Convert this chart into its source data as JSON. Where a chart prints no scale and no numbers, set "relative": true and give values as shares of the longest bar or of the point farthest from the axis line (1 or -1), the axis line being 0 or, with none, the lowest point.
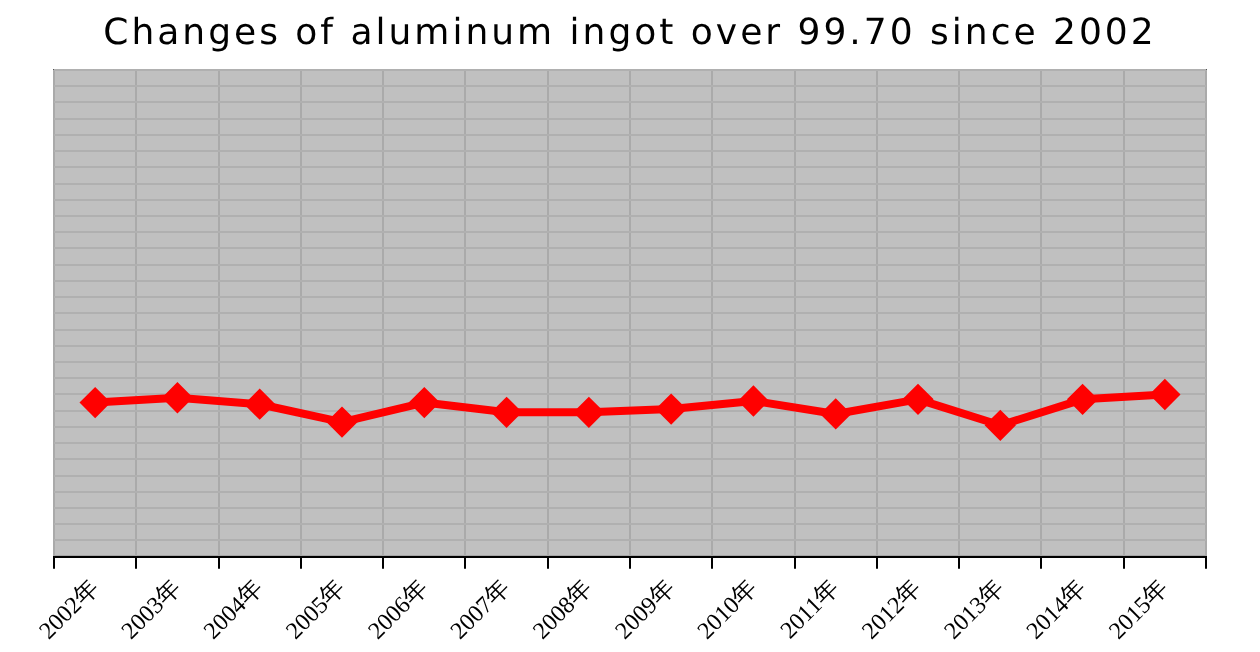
{
  "chart_data": {
    "type": "line",
    "title": "Changes of aluminum ingot over 99.70 since 2002",
    "categories": [
      "2002年",
      "2003年",
      "2004年",
      "2005年",
      "2006年",
      "2007年",
      "2008年",
      "2009年",
      "2010年",
      "2011年",
      "2012年",
      "2013年",
      "2014年",
      "2015年"
    ],
    "relative": true,
    "series": [
      {
        "color": "#ff0000",
        "values": [
          0.95,
          0.98,
          0.94,
          0.83,
          0.95,
          0.89,
          0.89,
          0.91,
          0.96,
          0.88,
          0.97,
          0.81,
          0.97,
          1
        ]
      }
    ],
    "grid": true,
    "legend": false,
    "marker": "diamond",
    "line_style": "solid"
  }
}
